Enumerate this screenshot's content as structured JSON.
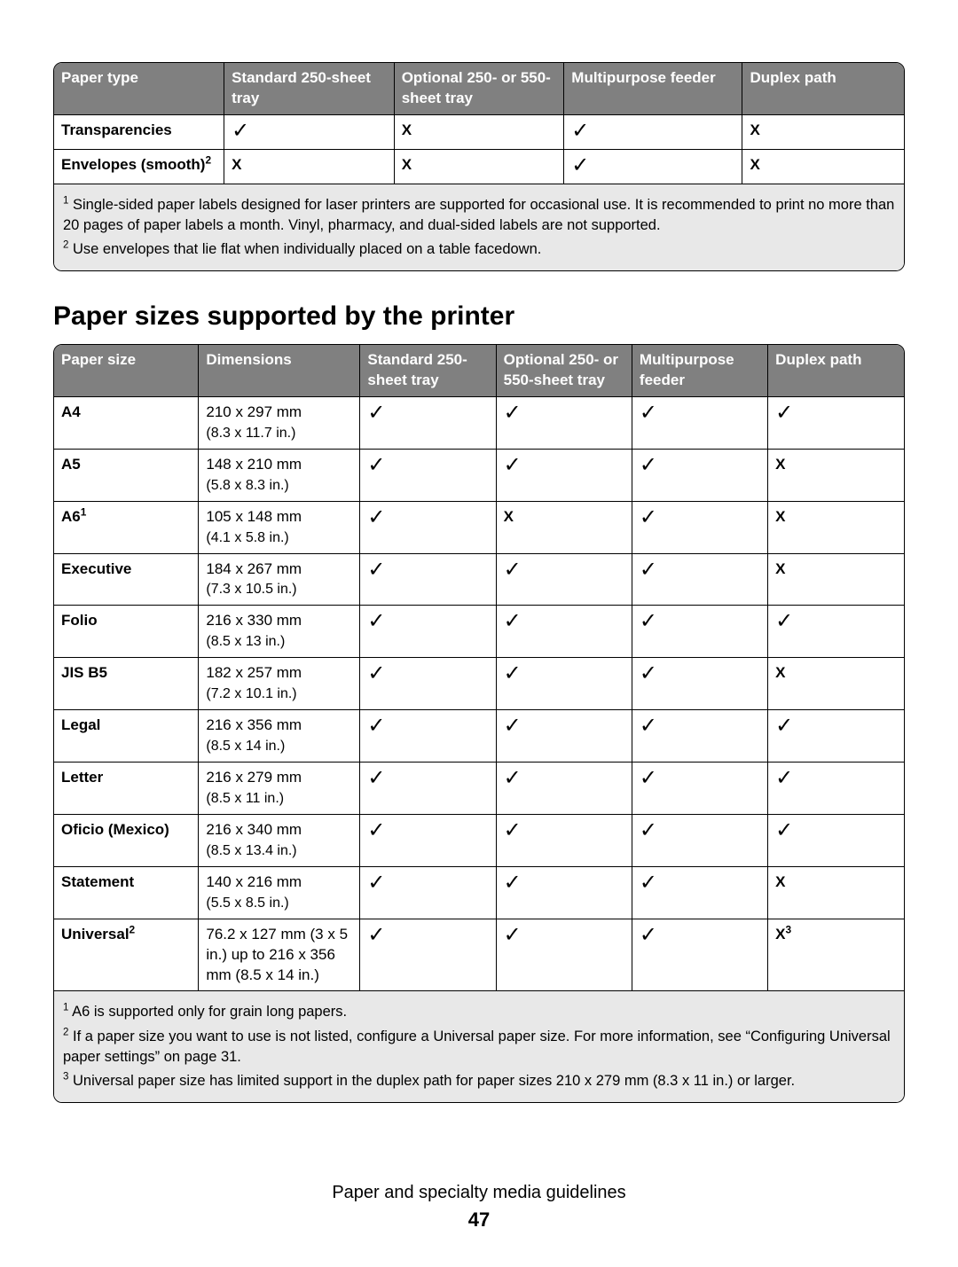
{
  "colors": {
    "header_bg": "#808080",
    "header_fg": "#ffffff",
    "border": "#000000",
    "footnote_bg": "#e8e8e8",
    "page_bg": "#ffffff"
  },
  "marks": {
    "check": "✓",
    "x": "X"
  },
  "table1": {
    "headers": [
      "Paper type",
      "Standard 250-sheet tray",
      "Optional 250- or 550-sheet tray",
      "Multipurpose feeder",
      "Duplex path"
    ],
    "rows": [
      {
        "label": "Transparencies",
        "sup": "",
        "cells": [
          "check",
          "x",
          "check",
          "x"
        ]
      },
      {
        "label": "Envelopes (smooth)",
        "sup": "2",
        "cells": [
          "x",
          "x",
          "check",
          "x"
        ]
      }
    ],
    "footnotes": [
      {
        "num": "1",
        "text": "Single-sided paper labels designed for laser printers are supported for occasional use. It is recommended to print no more than 20 pages of paper labels a month. Vinyl, pharmacy, and dual-sided labels are not supported."
      },
      {
        "num": "2",
        "text": "Use envelopes that lie flat when individually placed on a table facedown."
      }
    ]
  },
  "section_title": "Paper sizes supported by the printer",
  "table2": {
    "headers": [
      "Paper size",
      "Dimensions",
      "Standard 250-sheet tray",
      "Optional 250- or 550-sheet tray",
      "Multipurpose feeder",
      "Duplex path"
    ],
    "rows": [
      {
        "label": "A4",
        "sup": "",
        "dim1": "210 x 297 mm",
        "dim2": "(8.3 x 11.7 in.)",
        "cells": [
          "check",
          "check",
          "check",
          "check"
        ]
      },
      {
        "label": "A5",
        "sup": "",
        "dim1": "148 x 210 mm",
        "dim2": "(5.8 x 8.3 in.)",
        "cells": [
          "check",
          "check",
          "check",
          "x"
        ]
      },
      {
        "label": "A6",
        "sup": "1",
        "dim1": "105 x 148 mm",
        "dim2": "(4.1 x 5.8 in.)",
        "cells": [
          "check",
          "x",
          "check",
          "x"
        ]
      },
      {
        "label": "Executive",
        "sup": "",
        "dim1": "184 x 267 mm",
        "dim2": "(7.3 x 10.5 in.)",
        "cells": [
          "check",
          "check",
          "check",
          "x"
        ]
      },
      {
        "label": "Folio",
        "sup": "",
        "dim1": "216 x 330 mm",
        "dim2": "(8.5 x 13 in.)",
        "cells": [
          "check",
          "check",
          "check",
          "check"
        ]
      },
      {
        "label": "JIS B5",
        "sup": "",
        "dim1": "182 x 257 mm",
        "dim2": "(7.2 x 10.1 in.)",
        "cells": [
          "check",
          "check",
          "check",
          "x"
        ]
      },
      {
        "label": "Legal",
        "sup": "",
        "dim1": "216 x 356 mm",
        "dim2": "(8.5 x 14 in.)",
        "cells": [
          "check",
          "check",
          "check",
          "check"
        ]
      },
      {
        "label": "Letter",
        "sup": "",
        "dim1": "216 x 279 mm",
        "dim2": "(8.5 x 11 in.)",
        "cells": [
          "check",
          "check",
          "check",
          "check"
        ]
      },
      {
        "label": "Oficio (Mexico)",
        "sup": "",
        "dim1": "216 x 340 mm",
        "dim2": "(8.5 x 13.4 in.)",
        "cells": [
          "check",
          "check",
          "check",
          "check"
        ]
      },
      {
        "label": "Statement",
        "sup": "",
        "dim1": "140 x 216 mm",
        "dim2": "(5.5 x 8.5 in.)",
        "cells": [
          "check",
          "check",
          "check",
          "x"
        ]
      },
      {
        "label": "Universal",
        "sup": "2",
        "dim1": "76.2 x 127 mm (3 x 5 in.) up to 216 x 356 mm (8.5 x 14 in.)",
        "dim2": "",
        "cells": [
          "check",
          "check",
          "check",
          "x3"
        ]
      }
    ],
    "footnotes": [
      {
        "num": "1",
        "text": "A6 is supported only for grain long papers."
      },
      {
        "num": "2",
        "text": "If a paper size you want to use is not listed, configure a Universal paper size. For more information, see “Configuring Universal paper settings” on page 31."
      },
      {
        "num": "3",
        "text": "Universal paper size has limited support in the duplex path for paper sizes 210 x 279 mm (8.3 x 11 in.) or larger."
      }
    ]
  },
  "footer": {
    "section": "Paper and specialty media guidelines",
    "page": "47"
  }
}
